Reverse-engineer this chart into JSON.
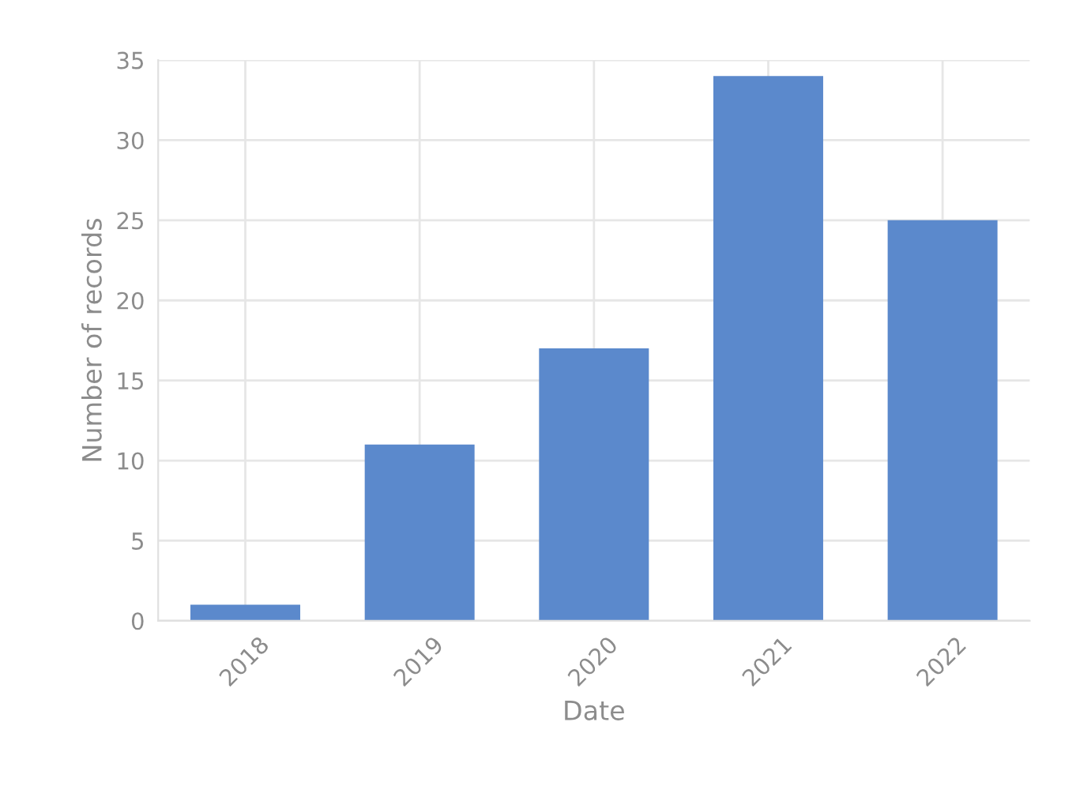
{
  "chart_data": {
    "type": "bar",
    "xlabel": "Date",
    "ylabel": "Number of records",
    "categories": [
      "2018",
      "2019",
      "2020",
      "2021",
      "2022"
    ],
    "values": [
      1,
      11,
      17,
      34,
      25
    ],
    "color": "#5b89cc",
    "ylim": [
      0,
      35
    ],
    "yticks": [
      0,
      5,
      10,
      15,
      20,
      25,
      30,
      35
    ],
    "grid": true
  }
}
